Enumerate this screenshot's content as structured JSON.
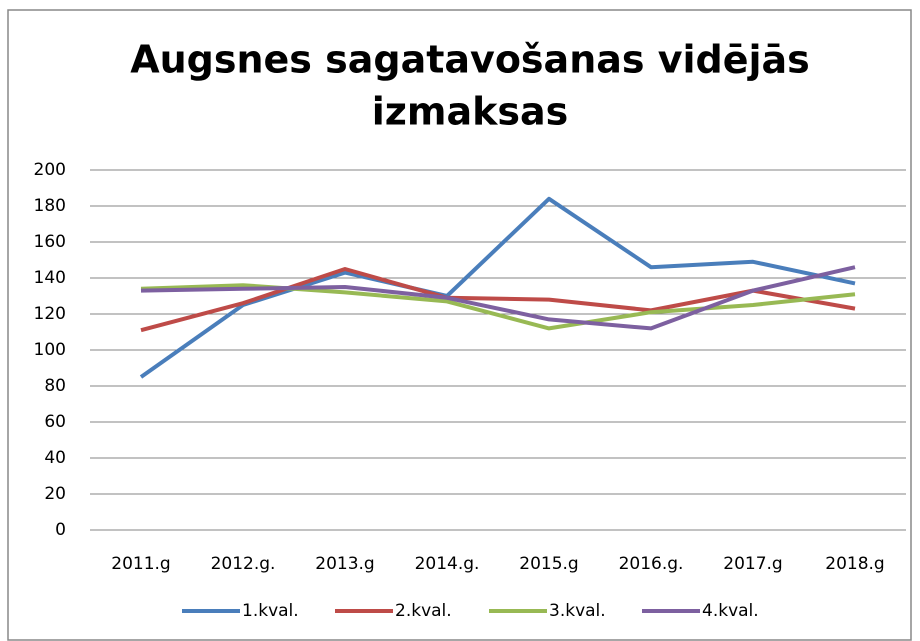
{
  "chart_data": {
    "type": "line",
    "title": [
      "Augsnes sagatavošanas vidējās",
      "izmaksas"
    ],
    "categories": [
      "2011.g",
      "2012.g.",
      "2013.g",
      "2014.g.",
      "2015.g",
      "2016.g.",
      "2017.g",
      "2018.g"
    ],
    "series": [
      {
        "name": "1.kval.",
        "color": "#4a7ebb",
        "values": [
          85,
          125,
          143,
          130,
          184,
          146,
          149,
          137
        ]
      },
      {
        "name": "2.kval.",
        "color": "#be4b48",
        "values": [
          111,
          126,
          145,
          129,
          128,
          122,
          133,
          123
        ]
      },
      {
        "name": "3.kval.",
        "color": "#98b954",
        "values": [
          134,
          136,
          132,
          127,
          112,
          121,
          125,
          131
        ]
      },
      {
        "name": "4.kval.",
        "color": "#7d60a0",
        "values": [
          133,
          134,
          135,
          129,
          117,
          112,
          133,
          146
        ]
      }
    ],
    "ylim": [
      0,
      200
    ],
    "yticks": [
      0,
      20,
      40,
      60,
      80,
      100,
      120,
      140,
      160,
      180,
      200
    ],
    "grid": true,
    "legend": "bottom"
  }
}
